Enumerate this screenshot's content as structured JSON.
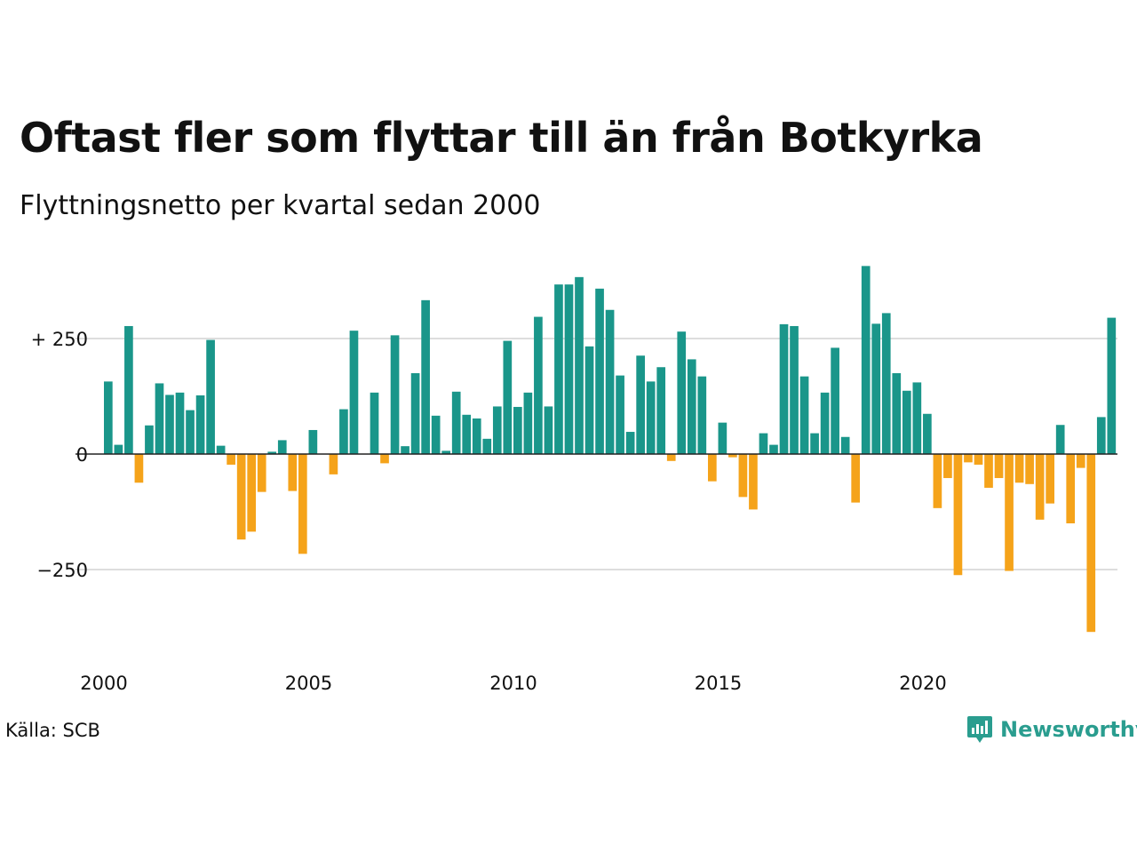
{
  "chart_data": {
    "type": "bar",
    "title": "Oftast fler som flyttar till än från Botkyrka",
    "subtitle": "Flyttningsnetto per kvartal sedan 2000",
    "x_start_year": 2000,
    "x_tick_labels": [
      "2000",
      "2005",
      "2010",
      "2015",
      "2020"
    ],
    "y_tick_labels": [
      "+ 250",
      "0",
      "−250"
    ],
    "y_ticks": [
      250,
      0,
      -250
    ],
    "ylim": [
      -390,
      410
    ],
    "grid": true,
    "colors": {
      "positive": "#1a968a",
      "negative": "#f5a31a"
    },
    "values": [
      157,
      20,
      277,
      -62,
      62,
      153,
      128,
      133,
      95,
      127,
      247,
      18,
      -23,
      -185,
      -168,
      -82,
      5,
      30,
      -80,
      -216,
      52,
      0,
      -44,
      97,
      267,
      0,
      133,
      -20,
      257,
      17,
      175,
      333,
      83,
      7,
      135,
      85,
      77,
      33,
      103,
      245,
      102,
      133,
      297,
      103,
      367,
      367,
      383,
      233,
      358,
      312,
      170,
      48,
      213,
      157,
      188,
      -15,
      265,
      205,
      168,
      -59,
      68,
      -7,
      -93,
      -120,
      45,
      20,
      281,
      277,
      168,
      45,
      133,
      230,
      37,
      -105,
      407,
      282,
      305,
      175,
      137,
      155,
      87,
      -117,
      -52,
      -262,
      -18,
      -23,
      -73,
      -52,
      -253,
      -62,
      -65,
      -142,
      -107,
      63,
      -150,
      -30,
      -385,
      80,
      295
    ]
  },
  "source": "Källa: SCB",
  "brand": "Newsworthy"
}
